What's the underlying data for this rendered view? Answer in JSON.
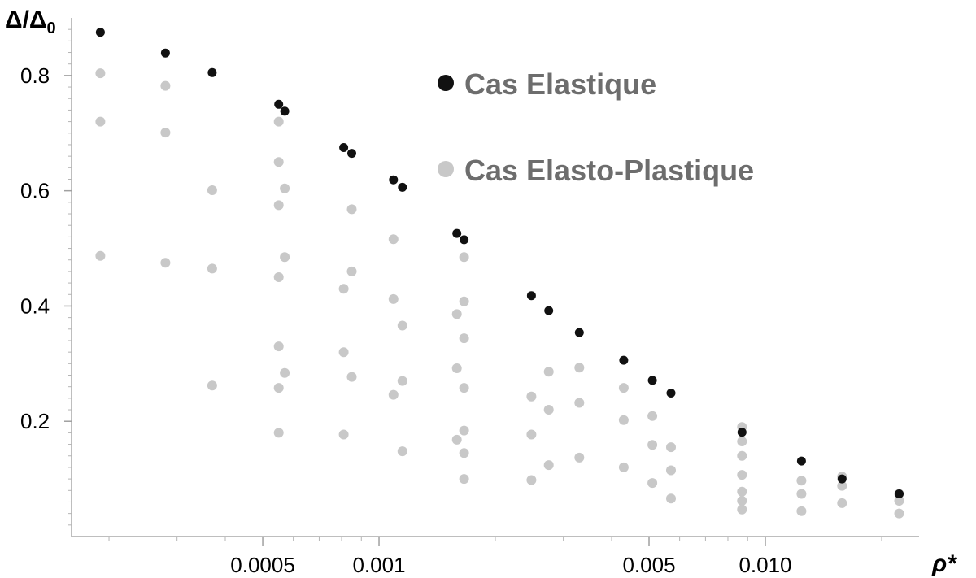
{
  "chart_data": {
    "type": "scatter",
    "xlabel": "ρ*",
    "ylabel": "Δ/Δ0",
    "ylabel_main": "Δ/Δ",
    "ylabel_sub": "0",
    "x_scale": "log",
    "xlim": [
      0.00016,
      0.025
    ],
    "ylim": [
      0,
      0.9
    ],
    "x_ticks": [
      {
        "value": 0.0005,
        "label": "0.0005"
      },
      {
        "value": 0.001,
        "label": "0.001"
      },
      {
        "value": 0.005,
        "label": "0.005"
      },
      {
        "value": 0.01,
        "label": "0.010"
      }
    ],
    "x_minor_ticks": [
      0.0002,
      0.0003,
      0.0004,
      0.0006,
      0.0007,
      0.0008,
      0.0009,
      0.002,
      0.003,
      0.004,
      0.006,
      0.007,
      0.008,
      0.009,
      0.02
    ],
    "y_ticks": [
      {
        "value": 0.2,
        "label": "0.2"
      },
      {
        "value": 0.4,
        "label": "0.4"
      },
      {
        "value": 0.6,
        "label": "0.6"
      },
      {
        "value": 0.8,
        "label": "0.8"
      }
    ],
    "y_minor_ticks": [
      0.02,
      0.04,
      0.06,
      0.08,
      0.1,
      0.12,
      0.14,
      0.16,
      0.18,
      0.22,
      0.24,
      0.26,
      0.28,
      0.3,
      0.32,
      0.34,
      0.36,
      0.38,
      0.42,
      0.44,
      0.46,
      0.48,
      0.5,
      0.52,
      0.54,
      0.56,
      0.58,
      0.62,
      0.64,
      0.66,
      0.68,
      0.7,
      0.72,
      0.74,
      0.76,
      0.78,
      0.82,
      0.84,
      0.86,
      0.88
    ],
    "grid": false,
    "legend_position": "top-right",
    "series": [
      {
        "name": "Cas Elastique",
        "color": "#111111",
        "points": [
          [
            0.00019,
            0.875
          ],
          [
            0.00028,
            0.839
          ],
          [
            0.00037,
            0.805
          ],
          [
            0.00055,
            0.75
          ],
          [
            0.00057,
            0.738
          ],
          [
            0.00081,
            0.675
          ],
          [
            0.00085,
            0.665
          ],
          [
            0.00109,
            0.619
          ],
          [
            0.00115,
            0.606
          ],
          [
            0.00159,
            0.526
          ],
          [
            0.00166,
            0.515
          ],
          [
            0.00248,
            0.418
          ],
          [
            0.00275,
            0.392
          ],
          [
            0.0033,
            0.354
          ],
          [
            0.0043,
            0.306
          ],
          [
            0.0051,
            0.271
          ],
          [
            0.0057,
            0.249
          ],
          [
            0.0087,
            0.181
          ],
          [
            0.0124,
            0.131
          ],
          [
            0.0158,
            0.1
          ],
          [
            0.0222,
            0.074
          ]
        ]
      },
      {
        "name": "Cas Elasto-Plastique",
        "color": "#c8c8c8",
        "points": [
          [
            0.00019,
            0.804
          ],
          [
            0.00019,
            0.72
          ],
          [
            0.00019,
            0.487
          ],
          [
            0.00028,
            0.782
          ],
          [
            0.00028,
            0.701
          ],
          [
            0.00028,
            0.475
          ],
          [
            0.00037,
            0.601
          ],
          [
            0.00037,
            0.465
          ],
          [
            0.00037,
            0.262
          ],
          [
            0.00055,
            0.72
          ],
          [
            0.00055,
            0.65
          ],
          [
            0.00055,
            0.575
          ],
          [
            0.00055,
            0.45
          ],
          [
            0.00055,
            0.33
          ],
          [
            0.00055,
            0.258
          ],
          [
            0.00055,
            0.18
          ],
          [
            0.00057,
            0.604
          ],
          [
            0.00057,
            0.485
          ],
          [
            0.00057,
            0.284
          ],
          [
            0.00081,
            0.43
          ],
          [
            0.00081,
            0.32
          ],
          [
            0.00081,
            0.177
          ],
          [
            0.00085,
            0.568
          ],
          [
            0.00085,
            0.46
          ],
          [
            0.00085,
            0.277
          ],
          [
            0.00109,
            0.516
          ],
          [
            0.00109,
            0.412
          ],
          [
            0.00109,
            0.246
          ],
          [
            0.00115,
            0.366
          ],
          [
            0.00115,
            0.27
          ],
          [
            0.00115,
            0.148
          ],
          [
            0.00159,
            0.386
          ],
          [
            0.00159,
            0.292
          ],
          [
            0.00159,
            0.168
          ],
          [
            0.00166,
            0.485
          ],
          [
            0.00166,
            0.408
          ],
          [
            0.00166,
            0.344
          ],
          [
            0.00166,
            0.258
          ],
          [
            0.00166,
            0.184
          ],
          [
            0.00166,
            0.145
          ],
          [
            0.00166,
            0.1
          ],
          [
            0.00248,
            0.243
          ],
          [
            0.00248,
            0.177
          ],
          [
            0.00248,
            0.098
          ],
          [
            0.00275,
            0.286
          ],
          [
            0.00275,
            0.22
          ],
          [
            0.00275,
            0.124
          ],
          [
            0.0033,
            0.293
          ],
          [
            0.0033,
            0.232
          ],
          [
            0.0033,
            0.137
          ],
          [
            0.0043,
            0.258
          ],
          [
            0.0043,
            0.202
          ],
          [
            0.0043,
            0.12
          ],
          [
            0.0051,
            0.209
          ],
          [
            0.0051,
            0.159
          ],
          [
            0.0051,
            0.093
          ],
          [
            0.0057,
            0.155
          ],
          [
            0.0057,
            0.115
          ],
          [
            0.0057,
            0.066
          ],
          [
            0.0087,
            0.19
          ],
          [
            0.0087,
            0.165
          ],
          [
            0.0087,
            0.14
          ],
          [
            0.0087,
            0.107
          ],
          [
            0.0087,
            0.078
          ],
          [
            0.0087,
            0.062
          ],
          [
            0.0087,
            0.047
          ],
          [
            0.0124,
            0.097
          ],
          [
            0.0124,
            0.074
          ],
          [
            0.0124,
            0.044
          ],
          [
            0.0158,
            0.104
          ],
          [
            0.0158,
            0.088
          ],
          [
            0.0158,
            0.058
          ],
          [
            0.0222,
            0.074
          ],
          [
            0.0222,
            0.062
          ],
          [
            0.0222,
            0.04
          ]
        ]
      }
    ]
  }
}
